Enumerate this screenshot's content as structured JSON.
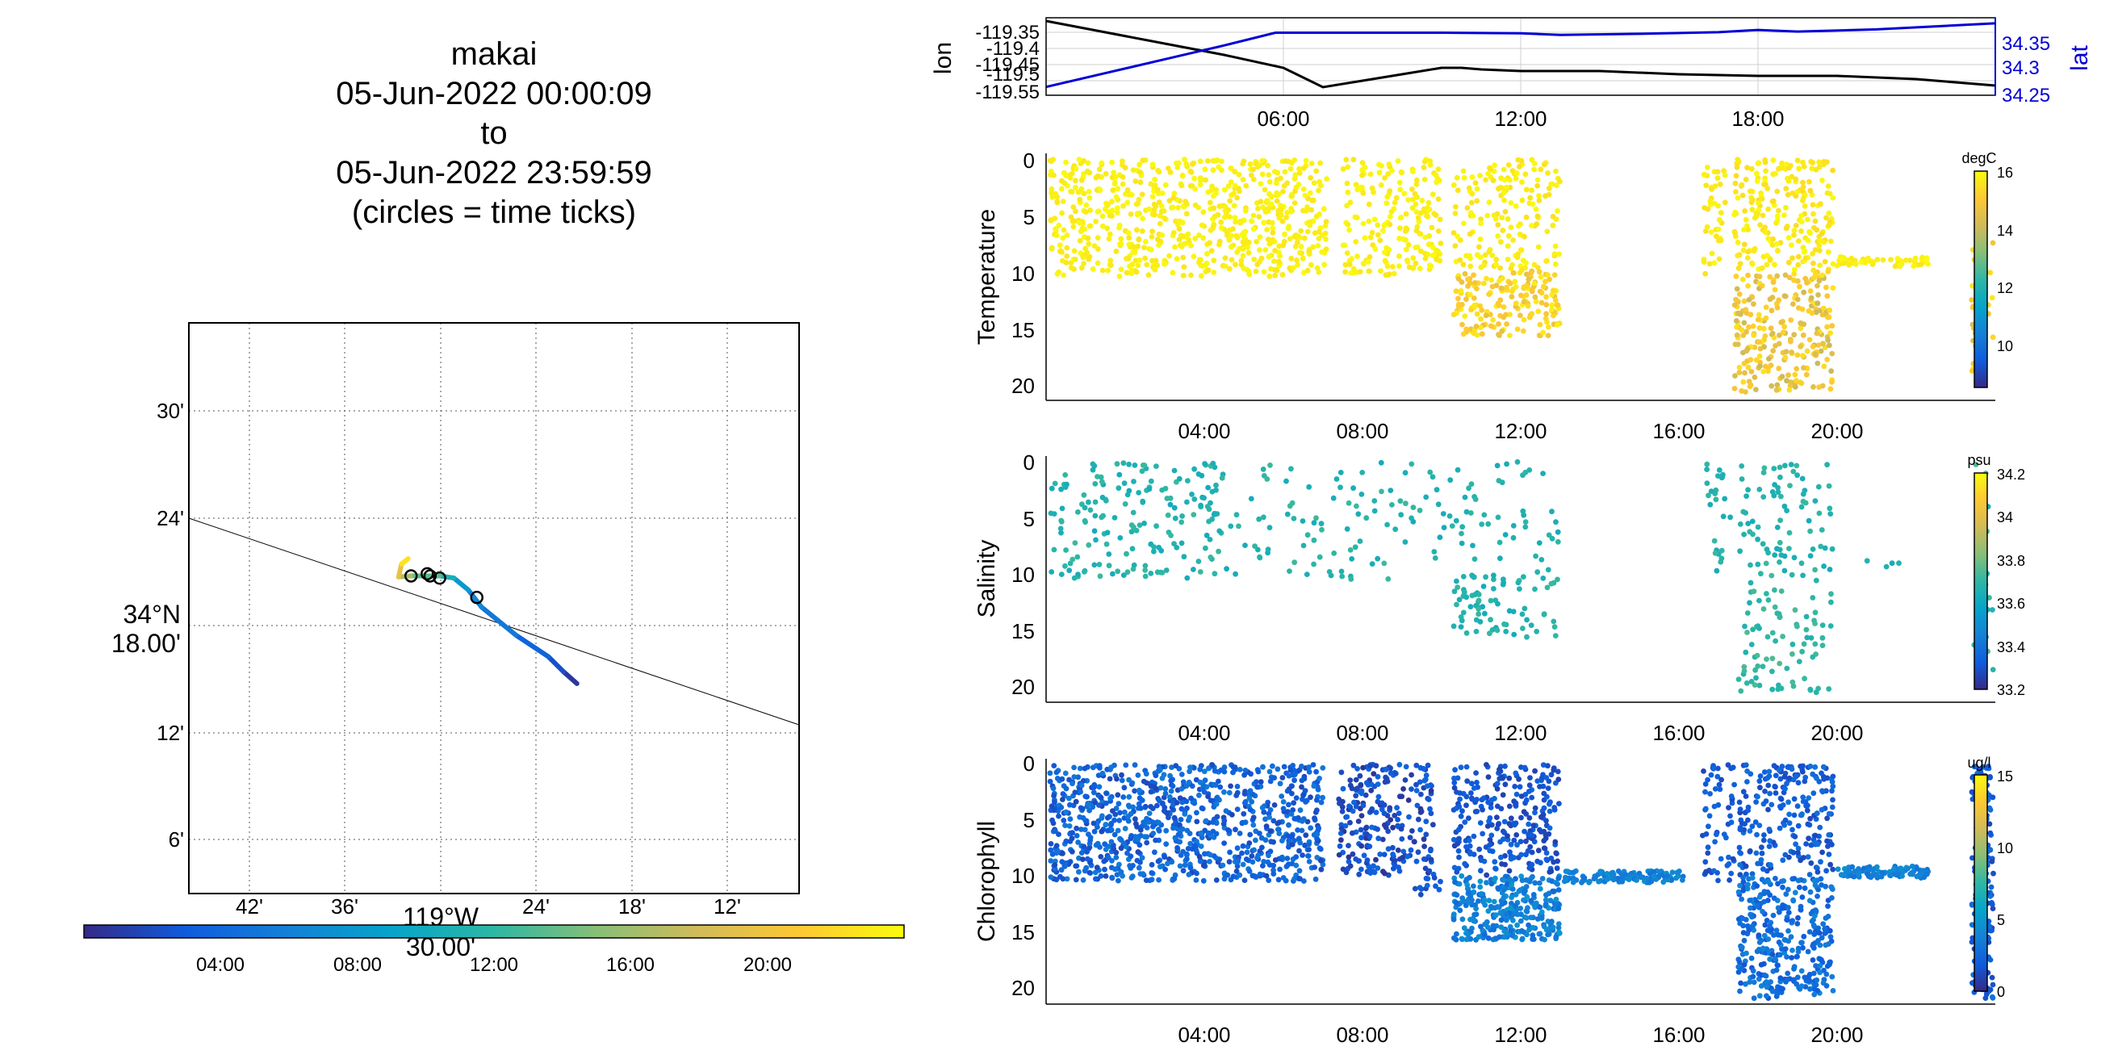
{
  "title": {
    "lines": [
      "makai",
      "05-Jun-2022 00:00:09",
      "to",
      "05-Jun-2022 23:59:59",
      "(circles = time ticks)"
    ]
  },
  "colors": {
    "parula": [
      "#352a87",
      "#0f5cdd",
      "#1481d6",
      "#06a4ca",
      "#2eb7a4",
      "#87bf77",
      "#d1bb59",
      "#fec832",
      "#f9fb0e"
    ],
    "lon_line": "#000000",
    "lat_line": "#0000d6",
    "grid": "#c8c8c8"
  },
  "chart_data": [
    {
      "type": "line",
      "name": "map",
      "xlabel_lines": [
        "119°W",
        "30.00'"
      ],
      "ylabel_lines": [
        "34°N",
        "18.00'"
      ],
      "x_ticks": [
        "42'",
        "36'",
        "",
        "24'",
        "18'",
        "12'"
      ],
      "y_ticks": [
        "30'",
        "24'",
        "",
        "12'",
        "6'"
      ],
      "colorbar_ticks": [
        "04:00",
        "08:00",
        "12:00",
        "16:00",
        "20:00"
      ],
      "track": {
        "lon": [
          -119.383,
          -119.397,
          -119.413,
          -119.447,
          -119.483,
          -119.497,
          -119.512,
          -119.527,
          -119.557,
          -119.57,
          -119.567,
          -119.56
        ],
        "lat": [
          34.255,
          34.266,
          34.28,
          34.3,
          34.326,
          34.342,
          34.353,
          34.355,
          34.355,
          34.354,
          34.366,
          34.371
        ],
        "hours": [
          0,
          1.5,
          3,
          4.5,
          6,
          7,
          9,
          12,
          15,
          18,
          21,
          24
        ]
      },
      "time_tick_circles": {
        "lon": [
          -119.557,
          -119.54,
          -119.537,
          -119.527,
          -119.488
        ],
        "lat": [
          34.355,
          34.357,
          34.355,
          34.353,
          34.335
        ]
      },
      "reference_line": {
        "lon": [
          -119.78,
          -119.16
        ],
        "lat": [
          34.4,
          34.22
        ]
      }
    },
    {
      "type": "line",
      "name": "position",
      "xlim": [
        0,
        24
      ],
      "x_ticks": [
        "06:00",
        "12:00",
        "18:00"
      ],
      "left_axis": {
        "label": "lon",
        "ticks": [
          "-119.35",
          "-119.4",
          "-119.45",
          "-119.5",
          "-119.55"
        ],
        "ylim": [
          -119.575,
          -119.335
        ]
      },
      "right_axis": {
        "label": "lat",
        "ticks": [
          "34.35",
          "34.3",
          "34.25"
        ],
        "ylim": [
          34.235,
          34.375
        ]
      },
      "series": [
        {
          "name": "lon",
          "x": [
            0,
            1.5,
            3,
            4.5,
            6,
            6.5,
            7,
            8,
            9,
            10,
            10.5,
            11,
            12,
            14,
            16,
            18,
            20,
            22,
            24
          ],
          "y": [
            -119.345,
            -119.38,
            -119.415,
            -119.45,
            -119.49,
            -119.52,
            -119.55,
            -119.53,
            -119.51,
            -119.49,
            -119.49,
            -119.495,
            -119.5,
            -119.5,
            -119.51,
            -119.515,
            -119.515,
            -119.525,
            -119.545
          ]
        },
        {
          "name": "lat",
          "x": [
            0,
            1.5,
            3,
            4.5,
            5.8,
            8,
            10,
            12,
            13,
            15,
            17,
            18,
            19,
            21,
            24
          ],
          "y": [
            34.25,
            34.275,
            34.3,
            34.325,
            34.348,
            34.348,
            34.348,
            34.347,
            34.344,
            34.346,
            34.349,
            34.353,
            34.35,
            34.354,
            34.365
          ]
        }
      ]
    },
    {
      "type": "scatter",
      "name": "temperature",
      "ylabel": "Temperature",
      "unit": "degC",
      "xlim": [
        0,
        24
      ],
      "ylim": [
        21,
        0
      ],
      "x_ticks": [
        "04:00",
        "08:00",
        "12:00",
        "16:00",
        "20:00"
      ],
      "y_ticks": [
        "0",
        "5",
        "10",
        "15",
        "20"
      ],
      "clim": [
        8.5,
        16
      ],
      "colorbar_ticks": [
        "10",
        "12",
        "14",
        "16"
      ],
      "segments": [
        {
          "t": [
            0.1,
            7.1
          ],
          "depth": [
            0.5,
            10.5
          ],
          "value": [
            15.6,
            16.0
          ],
          "n": 700
        },
        {
          "t": [
            7.5,
            9.0
          ],
          "depth": [
            0.5,
            10.5
          ],
          "value": [
            15.6,
            16.0
          ],
          "n": 110
        },
        {
          "t": [
            9.0,
            10.0
          ],
          "depth": [
            0.5,
            10.0
          ],
          "value": [
            15.6,
            16.0
          ],
          "n": 90
        },
        {
          "t": [
            10.3,
            13.0
          ],
          "depth": [
            0.5,
            10.0
          ],
          "value": [
            15.5,
            16.0
          ],
          "n": 170
        },
        {
          "t": [
            10.3,
            13.0
          ],
          "depth": [
            10.0,
            15.5
          ],
          "value": [
            14.6,
            15.8
          ],
          "n": 180
        },
        {
          "t": [
            16.6,
            17.2
          ],
          "depth": [
            0.5,
            10.5
          ],
          "value": [
            15.5,
            16.0
          ],
          "n": 40
        },
        {
          "t": [
            17.4,
            19.9
          ],
          "depth": [
            0.5,
            10.0
          ],
          "value": [
            15.4,
            16.0
          ],
          "n": 220
        },
        {
          "t": [
            17.4,
            19.9
          ],
          "depth": [
            10.0,
            20.5
          ],
          "value": [
            14.0,
            15.6
          ],
          "n": 250
        },
        {
          "t": [
            20.0,
            22.3
          ],
          "depth": [
            8.8,
            9.6
          ],
          "value": [
            15.6,
            16.0
          ],
          "n": 55
        },
        {
          "t": [
            23.4,
            23.95
          ],
          "depth": [
            7.0,
            19.0
          ],
          "value": [
            14.3,
            15.8
          ],
          "n": 45
        }
      ]
    },
    {
      "type": "scatter",
      "name": "salinity",
      "ylabel": "Salinity",
      "unit": "psu",
      "xlim": [
        0,
        24
      ],
      "ylim": [
        21,
        0
      ],
      "x_ticks": [
        "04:00",
        "08:00",
        "12:00",
        "16:00",
        "20:00"
      ],
      "y_ticks": [
        "0",
        "5",
        "10",
        "15",
        "20"
      ],
      "clim": [
        33.2,
        34.2
      ],
      "colorbar_ticks": [
        "34.2",
        "34",
        "33.8",
        "33.6",
        "33.4",
        "33.2"
      ],
      "segments": [
        {
          "t": [
            0.1,
            4.5
          ],
          "depth": [
            0.5,
            10.5
          ],
          "value": [
            33.62,
            33.72
          ],
          "n": 180
        },
        {
          "t": [
            4.5,
            7.0
          ],
          "depth": [
            0.5,
            10.5
          ],
          "value": [
            33.62,
            33.72
          ],
          "n": 40
        },
        {
          "t": [
            7.1,
            9.5
          ],
          "depth": [
            0.5,
            11.0
          ],
          "value": [
            33.62,
            33.72
          ],
          "n": 45
        },
        {
          "t": [
            9.5,
            13.0
          ],
          "depth": [
            0.5,
            10.0
          ],
          "value": [
            33.62,
            33.7
          ],
          "n": 60
        },
        {
          "t": [
            10.3,
            13.0
          ],
          "depth": [
            10.0,
            15.5
          ],
          "value": [
            33.62,
            33.72
          ],
          "n": 80
        },
        {
          "t": [
            16.7,
            17.3
          ],
          "depth": [
            0.5,
            10.0
          ],
          "value": [
            33.62,
            33.72
          ],
          "n": 25
        },
        {
          "t": [
            17.5,
            19.9
          ],
          "depth": [
            0.5,
            10.0
          ],
          "value": [
            33.62,
            33.72
          ],
          "n": 80
        },
        {
          "t": [
            17.5,
            19.9
          ],
          "depth": [
            10.0,
            20.5
          ],
          "value": [
            33.65,
            33.75
          ],
          "n": 90
        },
        {
          "t": [
            20.5,
            22.2
          ],
          "depth": [
            8.8,
            9.6
          ],
          "value": [
            33.62,
            33.7
          ],
          "n": 4
        },
        {
          "t": [
            23.4,
            23.95
          ],
          "depth": [
            0.5,
            19.5
          ],
          "value": [
            33.6,
            33.75
          ],
          "n": 25
        }
      ]
    },
    {
      "type": "scatter",
      "name": "chlorophyll",
      "ylabel": "Chlorophyll",
      "unit": "ug/l",
      "xlim": [
        0,
        24
      ],
      "ylim": [
        21,
        0
      ],
      "x_ticks": [
        "04:00",
        "08:00",
        "12:00",
        "16:00",
        "20:00"
      ],
      "y_ticks": [
        "0",
        "5",
        "10",
        "15",
        "20"
      ],
      "clim": [
        0,
        15
      ],
      "colorbar_ticks": [
        "15",
        "10",
        "5",
        "0"
      ],
      "segments": [
        {
          "t": [
            0.1,
            7.0
          ],
          "depth": [
            0.5,
            10.5
          ],
          "value": [
            1.0,
            3.5
          ],
          "n": 900
        },
        {
          "t": [
            7.4,
            9.8
          ],
          "depth": [
            0.5,
            10.0
          ],
          "value": [
            0.3,
            2.5
          ],
          "n": 240
        },
        {
          "t": [
            9.3,
            10.0
          ],
          "depth": [
            10.0,
            11.8
          ],
          "value": [
            1.0,
            2.5
          ],
          "n": 12
        },
        {
          "t": [
            10.3,
            13.0
          ],
          "depth": [
            0.5,
            10.0
          ],
          "value": [
            0.8,
            2.5
          ],
          "n": 260
        },
        {
          "t": [
            10.3,
            13.0
          ],
          "depth": [
            10.0,
            15.5
          ],
          "value": [
            2.5,
            5.0
          ],
          "n": 300
        },
        {
          "t": [
            13.1,
            16.2
          ],
          "depth": [
            9.6,
            10.6
          ],
          "value": [
            3.0,
            4.5
          ],
          "n": 120
        },
        {
          "t": [
            16.6,
            17.4
          ],
          "depth": [
            0.5,
            10.5
          ],
          "value": [
            1.0,
            2.5
          ],
          "n": 60
        },
        {
          "t": [
            17.5,
            19.9
          ],
          "depth": [
            0.5,
            10.0
          ],
          "value": [
            1.0,
            3.0
          ],
          "n": 220
        },
        {
          "t": [
            17.5,
            19.9
          ],
          "depth": [
            10.0,
            20.5
          ],
          "value": [
            1.5,
            4.0
          ],
          "n": 330
        },
        {
          "t": [
            20.0,
            22.3
          ],
          "depth": [
            9.2,
            10.2
          ],
          "value": [
            3.0,
            4.5
          ],
          "n": 90
        },
        {
          "t": [
            23.4,
            23.95
          ],
          "depth": [
            0.5,
            20.5
          ],
          "value": [
            0.8,
            3.0
          ],
          "n": 180
        }
      ]
    }
  ]
}
